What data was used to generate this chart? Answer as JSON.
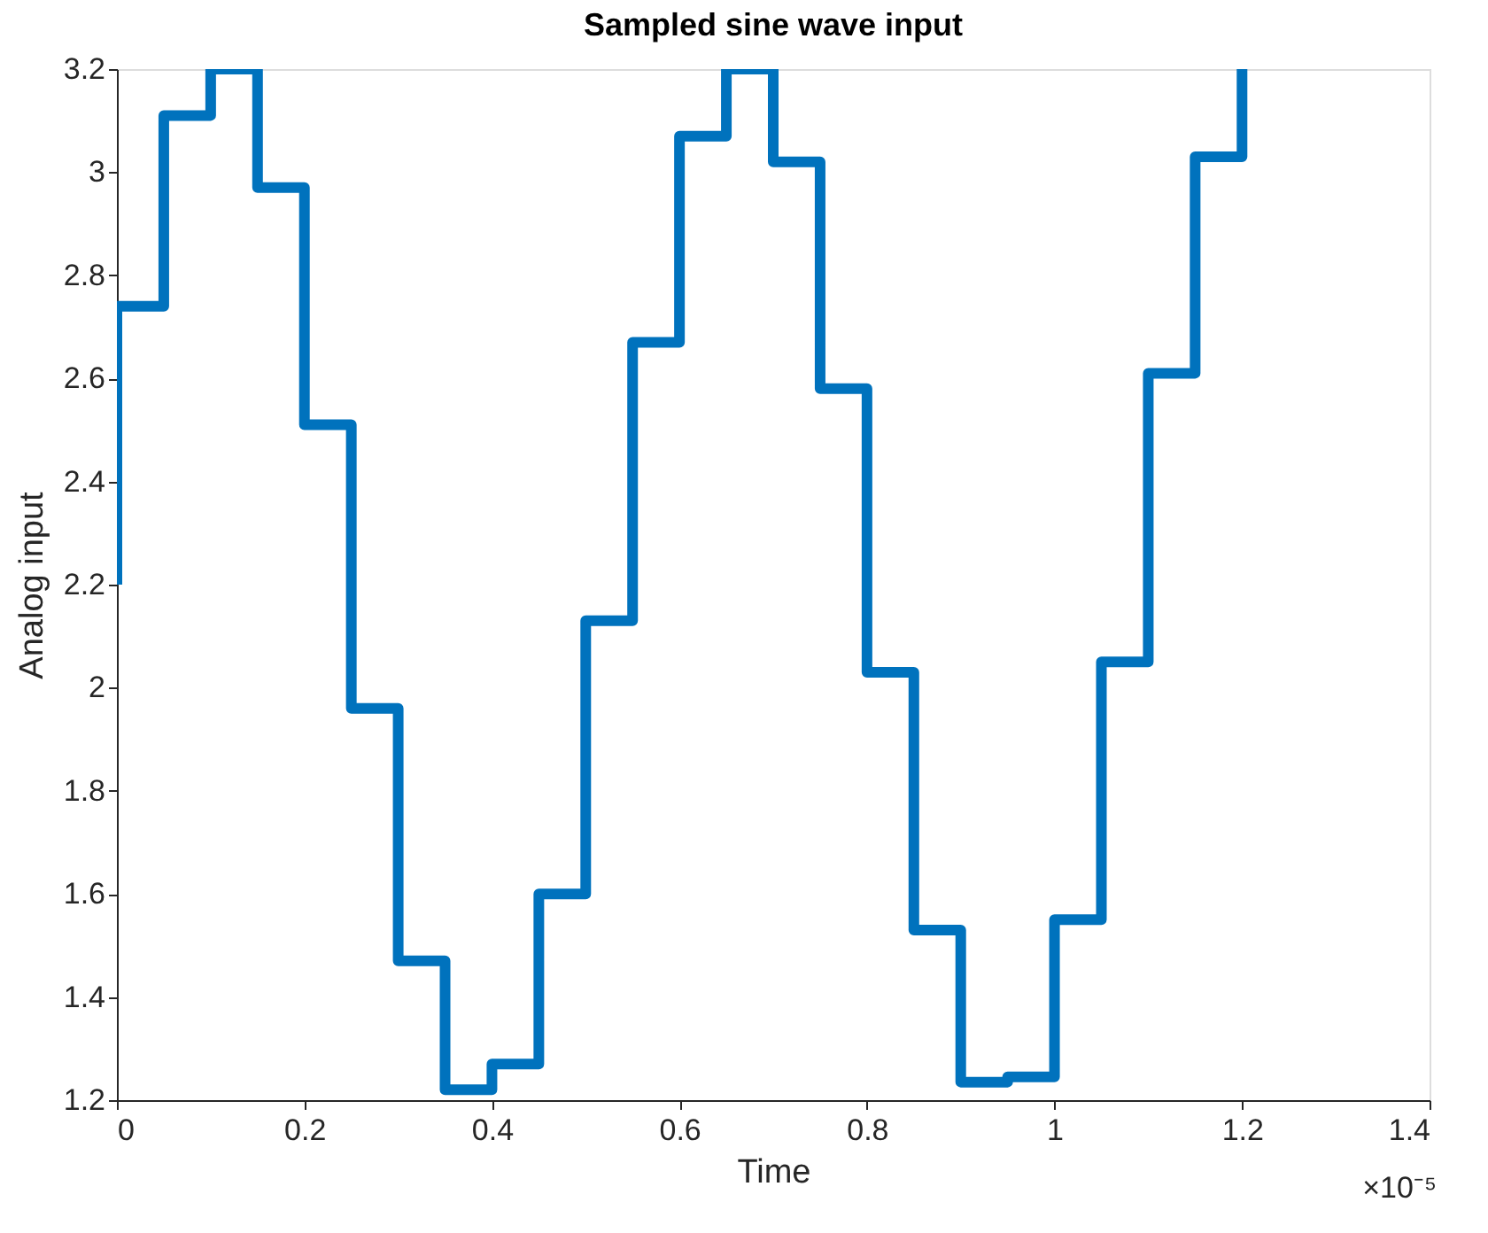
{
  "chart_data": {
    "type": "step",
    "title": "Sampled sine wave input",
    "xlabel": "Time",
    "ylabel": "Analog input",
    "x": [
      0,
      0,
      0.05,
      0.1,
      0.15,
      0.2,
      0.25,
      0.3,
      0.35,
      0.4,
      0.45,
      0.5,
      0.55,
      0.6,
      0.65,
      0.7,
      0.75,
      0.8,
      0.85,
      0.9,
      0.95,
      1,
      1.05,
      1.1,
      1.15,
      1.2
    ],
    "series": [
      {
        "color": "#0072bd",
        "values": [
          2.2,
          2.74,
          3.11,
          3.2,
          2.97,
          2.51,
          1.96,
          1.47,
          1.22,
          1.27,
          1.6,
          2.13,
          2.67,
          3.07,
          3.2,
          3.02,
          2.58,
          2.03,
          1.53,
          1.235,
          1.245,
          1.55,
          2.05,
          2.61,
          3.03,
          3.2
        ]
      }
    ],
    "xlim": [
      0,
      1.4
    ],
    "xticks": [
      0,
      0.2,
      0.4,
      0.6,
      0.8,
      1,
      1.2,
      1.4
    ],
    "ylim": [
      1.2,
      3.2
    ],
    "yticks": [
      1.2,
      1.4,
      1.6,
      1.8,
      2,
      2.2,
      2.4,
      2.6,
      2.8,
      3,
      3.2
    ],
    "annotations": [
      "×10⁻⁵"
    ],
    "grid": false,
    "line_style": "solid",
    "marker": "none"
  }
}
